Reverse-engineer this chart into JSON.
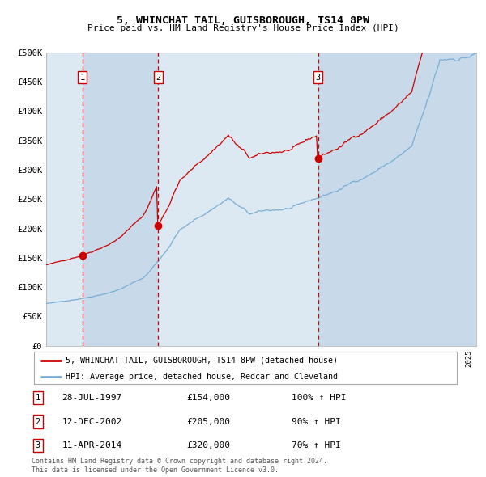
{
  "title": "5, WHINCHAT TAIL, GUISBOROUGH, TS14 8PW",
  "subtitle": "Price paid vs. HM Land Registry's House Price Index (HPI)",
  "legend_line1": "5, WHINCHAT TAIL, GUISBOROUGH, TS14 8PW (detached house)",
  "legend_line2": "HPI: Average price, detached house, Redcar and Cleveland",
  "footer1": "Contains HM Land Registry data © Crown copyright and database right 2024.",
  "footer2": "This data is licensed under the Open Government Licence v3.0.",
  "transactions": [
    {
      "label": "1",
      "date": "28-JUL-1997",
      "price": 154000,
      "pct": "100%",
      "arrow": "↑",
      "ref": "HPI",
      "x_year": 1997.57
    },
    {
      "label": "2",
      "date": "12-DEC-2002",
      "price": 205000,
      "pct": "90%",
      "arrow": "↑",
      "ref": "HPI",
      "x_year": 2002.95
    },
    {
      "label": "3",
      "date": "11-APR-2014",
      "price": 320000,
      "pct": "70%",
      "arrow": "↑",
      "ref": "HPI",
      "x_year": 2014.28
    }
  ],
  "red_line_color": "#cc0000",
  "blue_line_color": "#7aadd4",
  "bg_color": "#dce9f3",
  "alt_bg_color": "#c8daea",
  "vline_color": "#cc0000",
  "grid_color": "#ffffff",
  "ylim": [
    0,
    500000
  ],
  "xlim_start": 1995.0,
  "xlim_end": 2025.5,
  "yticks": [
    0,
    50000,
    100000,
    150000,
    200000,
    250000,
    300000,
    350000,
    400000,
    450000,
    500000
  ],
  "ytick_labels": [
    "£0",
    "£50K",
    "£100K",
    "£150K",
    "£200K",
    "£250K",
    "£300K",
    "£350K",
    "£400K",
    "£450K",
    "£500K"
  ]
}
